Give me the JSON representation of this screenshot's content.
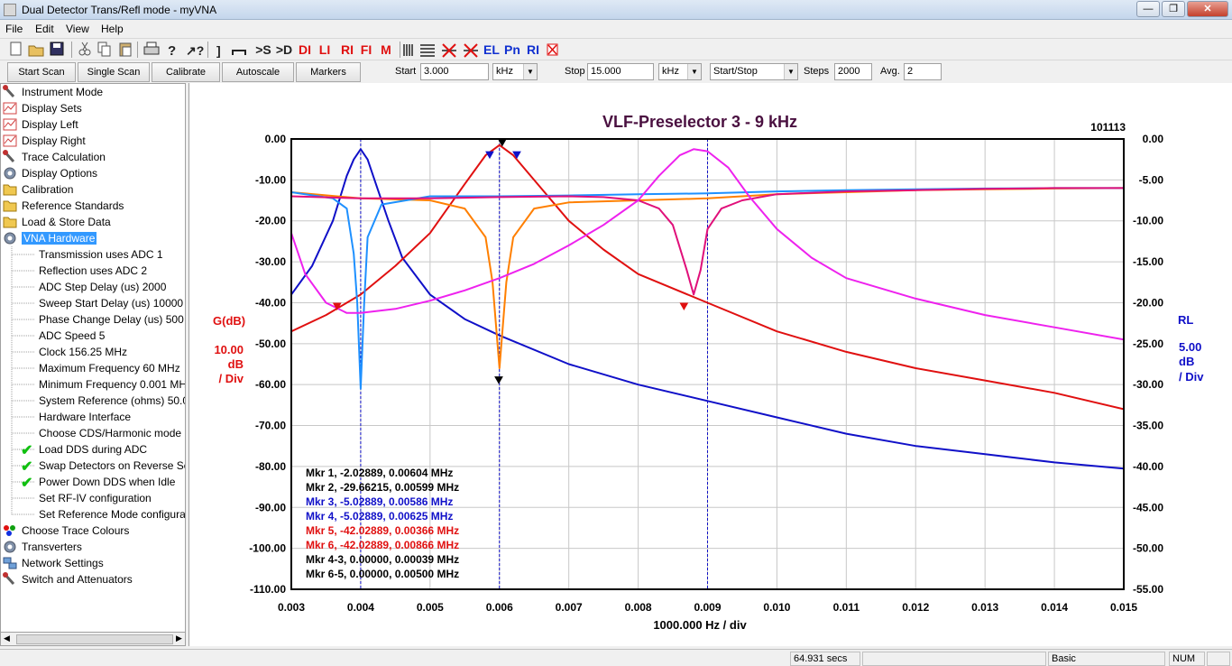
{
  "window": {
    "title": "Dual Detector Trans/Refl mode - myVNA"
  },
  "menu": [
    "File",
    "Edit",
    "View",
    "Help"
  ],
  "toolbar_icons": [
    "new-icon",
    "open-icon",
    "save-icon",
    "cut-icon",
    "copy-icon",
    "paste-icon",
    "print-icon",
    "help-icon",
    "whats-this-icon"
  ],
  "toolbar_text": [
    {
      "label": ">S",
      "color": "gray"
    },
    {
      "label": ">D",
      "color": "gray"
    },
    {
      "label": "DI",
      "color": "red"
    },
    {
      "label": "LI",
      "color": "red"
    },
    {
      "label": "RI",
      "color": "red"
    },
    {
      "label": "FI",
      "color": "red"
    },
    {
      "label": "M",
      "color": "red"
    },
    {
      "label": "EL",
      "color": "blue"
    },
    {
      "label": "Pn",
      "color": "blue"
    },
    {
      "label": "RI",
      "color": "blue"
    }
  ],
  "controls": {
    "start_scan": "Start Scan",
    "single_scan": "Single Scan",
    "calibrate": "Calibrate",
    "autoscale": "Autoscale",
    "markers": "Markers",
    "start_label": "Start",
    "start_value": "3.000",
    "start_unit": "kHz",
    "stop_label": "Stop",
    "stop_value": "15.000",
    "stop_unit": "kHz",
    "mode_value": "Start/Stop",
    "steps_label": "Steps",
    "steps_value": "2000",
    "avg_label": "Avg.",
    "avg_value": "2"
  },
  "sidebar": {
    "items": [
      {
        "label": "Instrument Mode",
        "icon": "wrench-icon",
        "level": "top"
      },
      {
        "label": "Display Sets",
        "icon": "chart-icon",
        "level": "top"
      },
      {
        "label": "Display Left",
        "icon": "chart-icon",
        "level": "top"
      },
      {
        "label": "Display Right",
        "icon": "chart-icon",
        "level": "top"
      },
      {
        "label": "Trace Calculation",
        "icon": "wrench-icon",
        "level": "top"
      },
      {
        "label": "Display Options",
        "icon": "gear-icon",
        "level": "top"
      },
      {
        "label": "Calibration",
        "icon": "folder-icon",
        "level": "top"
      },
      {
        "label": "Reference Standards",
        "icon": "folder-icon",
        "level": "top"
      },
      {
        "label": "Load & Store Data",
        "icon": "folder-icon",
        "level": "top"
      },
      {
        "label": "VNA Hardware",
        "icon": "gear-icon",
        "level": "top",
        "selected": true
      },
      {
        "label": "Transmission uses ADC 1",
        "level": "sub"
      },
      {
        "label": "Reflection uses ADC 2",
        "level": "sub"
      },
      {
        "label": "ADC Step Delay (us) 2000",
        "level": "sub"
      },
      {
        "label": "Sweep Start Delay (us) 10000",
        "level": "sub"
      },
      {
        "label": "Phase Change Delay (us) 500",
        "level": "sub"
      },
      {
        "label": "ADC Speed 5",
        "level": "sub"
      },
      {
        "label": "Clock 156.25 MHz",
        "level": "sub"
      },
      {
        "label": "Maximum Frequency 60 MHz",
        "level": "sub"
      },
      {
        "label": "Minimum Frequency 0.001 MH",
        "level": "sub"
      },
      {
        "label": "System Reference (ohms) 50.0(",
        "level": "sub"
      },
      {
        "label": "Hardware Interface",
        "level": "sub"
      },
      {
        "label": "Choose CDS/Harmonic mode",
        "level": "sub"
      },
      {
        "label": "Load DDS during ADC",
        "level": "sub",
        "checked": true
      },
      {
        "label": "Swap Detectors on Reverse Sca",
        "level": "sub",
        "checked": true
      },
      {
        "label": "Power Down DDS when Idle",
        "level": "sub",
        "checked": true
      },
      {
        "label": "Set RF-IV configuration",
        "level": "sub"
      },
      {
        "label": "Set Reference Mode configurat",
        "level": "sub"
      },
      {
        "label": "Choose Trace Colours",
        "icon": "colour-dots-icon",
        "level": "top"
      },
      {
        "label": "Transverters",
        "icon": "gear-icon",
        "level": "top"
      },
      {
        "label": "Network Settings",
        "icon": "network-icon",
        "level": "top"
      },
      {
        "label": "Switch and Attenuators",
        "icon": "wrench-icon",
        "level": "top"
      }
    ]
  },
  "plot": {
    "title": "VLF-Preselector 3 - 9 kHz",
    "id_label": "101113",
    "left_axis": {
      "name": "G(dB)",
      "scale": "10.00",
      "unit": "dB",
      "per": "/ Div"
    },
    "right_axis": {
      "name": "RL",
      "scale": "5.00",
      "unit": "dB",
      "per": "/ Div"
    },
    "x_axis_label": "1000.000 Hz / div",
    "markers": [
      {
        "text": "Mkr 1, -2.02889, 0.00604 MHz",
        "color": "#000000"
      },
      {
        "text": "Mkr 2, -29.66215, 0.00599 MHz",
        "color": "#000000"
      },
      {
        "text": "Mkr 3, -5.02889, 0.00586 MHz",
        "color": "#1010c8"
      },
      {
        "text": "Mkr 4, -5.02889, 0.00625 MHz",
        "color": "#1010c8"
      },
      {
        "text": "Mkr 5, -42.02889, 0.00366 MHz",
        "color": "#e01010"
      },
      {
        "text": "Mkr 6, -42.02889, 0.00866 MHz",
        "color": "#e01010"
      },
      {
        "text": "Mkr 4-3, 0.00000, 0.00039 MHz",
        "color": "#000000"
      },
      {
        "text": "Mkr 6-5, 0.00000, 0.00500 MHz",
        "color": "#000000"
      }
    ]
  },
  "chart_data": {
    "type": "line",
    "title": "VLF-Preselector 3 - 9 kHz",
    "xlabel": "1000.000 Hz / div",
    "ylabel_left": "G(dB)",
    "ylabel_right": "RL",
    "xlim": [
      0.003,
      0.015
    ],
    "ylim_left": [
      -110,
      0
    ],
    "ylim_right": [
      -55,
      0
    ],
    "x_ticks": [
      "0.003",
      "0.004",
      "0.005",
      "0.006",
      "0.007",
      "0.008",
      "0.009",
      "0.010",
      "0.011",
      "0.012",
      "0.013",
      "0.014",
      "0.015"
    ],
    "y_ticks_left": [
      "0.00",
      "-10.00",
      "-20.00",
      "-30.00",
      "-40.00",
      "-50.00",
      "-60.00",
      "-70.00",
      "-80.00",
      "-90.00",
      "-100.00",
      "-110.00"
    ],
    "y_ticks_right": [
      "0.00",
      "-5.00",
      "-10.00",
      "-15.00",
      "-20.00",
      "-25.00",
      "-30.00",
      "-35.00",
      "-40.00",
      "-45.00",
      "-50.00",
      "-55.00"
    ],
    "grid": true,
    "series": [
      {
        "color": "#1010c8",
        "axis": "left",
        "x": [
          0.003,
          0.0033,
          0.0036,
          0.0038,
          0.0039,
          0.004,
          0.0041,
          0.0042,
          0.0044,
          0.0046,
          0.005,
          0.0055,
          0.006,
          0.007,
          0.008,
          0.009,
          0.01,
          0.011,
          0.012,
          0.013,
          0.014,
          0.015
        ],
        "y": [
          -38,
          -31,
          -20,
          -9,
          -5,
          -2.5,
          -5,
          -10,
          -20,
          -29,
          -38,
          -44,
          -48,
          -55,
          -60,
          -64,
          -68,
          -72,
          -75,
          -77,
          -79,
          -80.5
        ]
      },
      {
        "color": "#e01010",
        "axis": "left",
        "x": [
          0.003,
          0.0035,
          0.004,
          0.0045,
          0.005,
          0.0055,
          0.0058,
          0.006,
          0.0062,
          0.0065,
          0.007,
          0.0075,
          0.008,
          0.009,
          0.01,
          0.011,
          0.012,
          0.013,
          0.014,
          0.015
        ],
        "y": [
          -47,
          -43,
          -38,
          -31,
          -23,
          -11,
          -4,
          -1.5,
          -4,
          -10,
          -20,
          -27,
          -33,
          -40,
          -47,
          -52,
          -56,
          -59,
          -62,
          -66
        ]
      },
      {
        "color": "#ff7f00",
        "axis": "left",
        "x": [
          0.003,
          0.004,
          0.005,
          0.0055,
          0.0058,
          0.0059,
          0.006,
          0.0061,
          0.0062,
          0.0065,
          0.007,
          0.008,
          0.009,
          0.01,
          0.011,
          0.012,
          0.013,
          0.014,
          0.015
        ],
        "y": [
          -13,
          -14.5,
          -15,
          -17,
          -24,
          -35,
          -56,
          -35,
          -24,
          -17,
          -15.5,
          -15,
          -14.5,
          -13.5,
          -13,
          -12.5,
          -12.3,
          -12.1,
          -12
        ]
      },
      {
        "color": "#1e90ff",
        "axis": "left",
        "x": [
          0.003,
          0.0034,
          0.0036,
          0.0038,
          0.0039,
          0.00395,
          0.004,
          0.00405,
          0.0041,
          0.0043,
          0.005,
          0.006,
          0.007,
          0.008,
          0.009,
          0.01,
          0.011,
          0.012,
          0.013,
          0.014,
          0.015
        ],
        "y": [
          -13,
          -14,
          -14.5,
          -17,
          -28,
          -40,
          -61,
          -40,
          -24,
          -16,
          -14,
          -14,
          -13.8,
          -13.5,
          -13.3,
          -12.8,
          -12.5,
          -12.3,
          -12.1,
          -12,
          -12
        ]
      },
      {
        "color": "#e0107a",
        "axis": "left",
        "x": [
          0.003,
          0.004,
          0.005,
          0.006,
          0.007,
          0.0075,
          0.008,
          0.0083,
          0.0085,
          0.0087,
          0.0088,
          0.0089,
          0.009,
          0.0092,
          0.0095,
          0.01,
          0.011,
          0.012,
          0.013,
          0.014,
          0.015
        ],
        "y": [
          -14,
          -14.5,
          -14.5,
          -14.2,
          -14,
          -14.2,
          -15,
          -17,
          -21,
          -32,
          -38,
          -32,
          -22,
          -17,
          -15,
          -13.5,
          -12.8,
          -12.5,
          -12.2,
          -12,
          -12
        ]
      },
      {
        "color": "#ee22ee",
        "axis": "left",
        "x": [
          0.003,
          0.0032,
          0.0035,
          0.0038,
          0.004,
          0.0045,
          0.005,
          0.0055,
          0.006,
          0.0065,
          0.007,
          0.0075,
          0.008,
          0.0083,
          0.0086,
          0.0088,
          0.009,
          0.0093,
          0.0096,
          0.01,
          0.0105,
          0.011,
          0.012,
          0.013,
          0.014,
          0.015
        ],
        "y": [
          -23,
          -33,
          -40,
          -42.5,
          -42.5,
          -41.5,
          -39.5,
          -37,
          -34,
          -30.5,
          -26,
          -21,
          -15,
          -9,
          -4,
          -2.5,
          -3,
          -7,
          -14,
          -22,
          -29,
          -34,
          -39,
          -43,
          -46,
          -49
        ]
      }
    ],
    "marker_points": [
      {
        "x": 0.00604,
        "y": -1,
        "color": "#000000",
        "kind": "down"
      },
      {
        "x": 0.00599,
        "y": -59,
        "color": "#000000",
        "kind": "down"
      },
      {
        "x": 0.00586,
        "y": -4,
        "color": "#1010c8",
        "kind": "down"
      },
      {
        "x": 0.00625,
        "y": -4,
        "color": "#1010c8",
        "kind": "down"
      },
      {
        "x": 0.00366,
        "y": -41,
        "color": "#e01010",
        "kind": "down"
      },
      {
        "x": 0.00866,
        "y": -41,
        "color": "#e01010",
        "kind": "down"
      }
    ],
    "marker_lines_x": [
      0.004,
      0.006,
      0.009
    ]
  },
  "status": {
    "time": "64.931 secs",
    "mode": "Basic",
    "num": "NUM"
  }
}
